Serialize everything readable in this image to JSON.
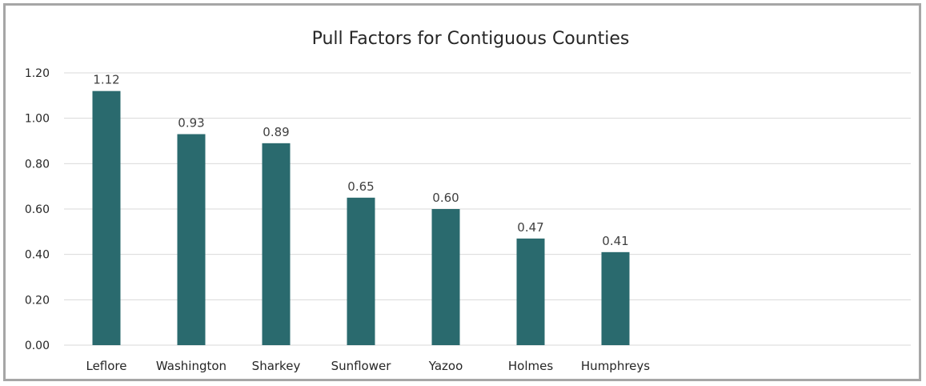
{
  "chart_data": {
    "type": "bar",
    "title": "Pull Factors for Contiguous Counties",
    "xlabel": "",
    "ylabel": "",
    "categories": [
      "Leflore",
      "Washington",
      "Sharkey",
      "Sunflower",
      "Yazoo",
      "Holmes",
      "Humphreys"
    ],
    "values": [
      1.12,
      0.93,
      0.89,
      0.65,
      0.6,
      0.47,
      0.41
    ],
    "data_labels": [
      "1.12",
      "0.93",
      "0.89",
      "0.65",
      "0.60",
      "0.47",
      "0.41"
    ],
    "ylim": [
      0,
      1.2
    ],
    "yticks": [
      0,
      0.2,
      0.4,
      0.6,
      0.8,
      1.0,
      1.2
    ],
    "ytick_labels": [
      "0.00",
      "0.20",
      "0.40",
      "0.60",
      "0.80",
      "1.00",
      "1.20"
    ],
    "grid": true,
    "legend": "none",
    "colors": {
      "bar": "#2a6a6e",
      "grid": "#d9d9d9",
      "frame": "#a6a6a6"
    }
  }
}
